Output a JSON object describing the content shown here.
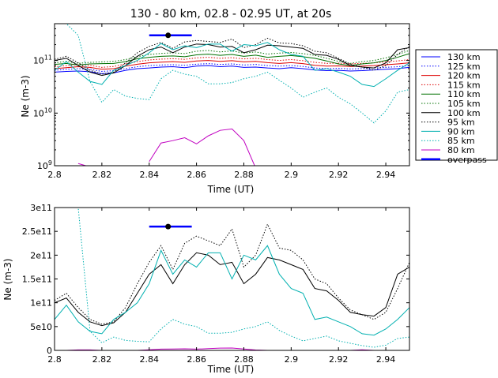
{
  "chart_data": [
    {
      "type": "line",
      "title": "130 - 80 km, 02.8 - 02.95  UT, at 20s",
      "xlabel": "Time (UT)",
      "ylabel": "Ne (m-3)",
      "xlim": [
        2.8,
        2.95
      ],
      "ylim": [
        1000000000,
        500000000000
      ],
      "yscale": "log",
      "x_ticks": [
        "2.8",
        "2.82",
        "2.84",
        "2.86",
        "2.88",
        "2.9",
        "2.92",
        "2.94"
      ],
      "y_ticks": [
        {
          "value": 1000000000,
          "base": "10",
          "exp": "9"
        },
        {
          "value": 10000000000,
          "base": "10",
          "exp": "10"
        },
        {
          "value": 100000000000,
          "base": "10",
          "exp": "11"
        }
      ],
      "legend_placement": "outside-right",
      "x": [
        2.8,
        2.805,
        2.81,
        2.815,
        2.82,
        2.825,
        2.83,
        2.835,
        2.84,
        2.845,
        2.85,
        2.855,
        2.86,
        2.865,
        2.87,
        2.875,
        2.88,
        2.885,
        2.89,
        2.895,
        2.9,
        2.905,
        2.91,
        2.915,
        2.92,
        2.925,
        2.93,
        2.935,
        2.94,
        2.945,
        2.95
      ],
      "series": [
        {
          "name": "130 km",
          "color": "#0000ff",
          "dash": "solid",
          "values": [
            60000000000.0,
            62000000000.0,
            63000000000.0,
            61000000000.0,
            56000000000.0,
            58000000000.0,
            65000000000.0,
            70000000000.0,
            72000000000.0,
            75000000000.0,
            76000000000.0,
            73000000000.0,
            78000000000.0,
            80000000000.0,
            76000000000.0,
            78000000000.0,
            74000000000.0,
            75000000000.0,
            72000000000.0,
            70000000000.0,
            73000000000.0,
            70000000000.0,
            66000000000.0,
            64000000000.0,
            65000000000.0,
            63000000000.0,
            64000000000.0,
            66000000000.0,
            68000000000.0,
            70000000000.0,
            74000000000.0
          ]
        },
        {
          "name": "125 km",
          "color": "#0000ff",
          "dash": "dotted",
          "values": [
            65000000000.0,
            68000000000.0,
            70000000000.0,
            68000000000.0,
            62000000000.0,
            64000000000.0,
            70000000000.0,
            76000000000.0,
            80000000000.0,
            82000000000.0,
            83000000000.0,
            81000000000.0,
            85000000000.0,
            87000000000.0,
            84000000000.0,
            86000000000.0,
            82000000000.0,
            84000000000.0,
            80000000000.0,
            78000000000.0,
            80000000000.0,
            77000000000.0,
            72000000000.0,
            70000000000.0,
            71000000000.0,
            69000000000.0,
            70000000000.0,
            72000000000.0,
            74000000000.0,
            76000000000.0,
            80000000000.0
          ]
        },
        {
          "name": "120 km",
          "color": "#dd0000",
          "dash": "solid",
          "values": [
            70000000000.0,
            73000000000.0,
            76000000000.0,
            74000000000.0,
            68000000000.0,
            70000000000.0,
            78000000000.0,
            85000000000.0,
            90000000000.0,
            93000000000.0,
            95000000000.0,
            92000000000.0,
            98000000000.0,
            100000000000.0,
            96000000000.0,
            99000000000.0,
            94000000000.0,
            96000000000.0,
            91000000000.0,
            88000000000.0,
            91000000000.0,
            87000000000.0,
            81000000000.0,
            78000000000.0,
            79000000000.0,
            77000000000.0,
            78000000000.0,
            80000000000.0,
            83000000000.0,
            86000000000.0,
            90000000000.0
          ]
        },
        {
          "name": "115 km",
          "color": "#dd0000",
          "dash": "dotted",
          "values": [
            76000000000.0,
            80000000000.0,
            84000000000.0,
            81000000000.0,
            74000000000.0,
            77000000000.0,
            86000000000.0,
            95000000000.0,
            102000000000.0,
            106000000000.0,
            108000000000.0,
            105000000000.0,
            112000000000.0,
            115000000000.0,
            110000000000.0,
            113000000000.0,
            107000000000.0,
            110000000000.0,
            104000000000.0,
            100000000000.0,
            104000000000.0,
            99000000000.0,
            92000000000.0,
            88000000000.0,
            89000000000.0,
            86000000000.0,
            88000000000.0,
            90000000000.0,
            94000000000.0,
            98000000000.0,
            104000000000.0
          ]
        },
        {
          "name": "110 km",
          "color": "#007000",
          "dash": "solid",
          "values": [
            84000000000.0,
            88000000000.0,
            82000000000.0,
            86000000000.0,
            87000000000.0,
            88000000000.0,
            95000000000.0,
            108000000000.0,
            115000000000.0,
            120000000000.0,
            122000000000.0,
            118000000000.0,
            128000000000.0,
            132000000000.0,
            125000000000.0,
            130000000000.0,
            120000000000.0,
            126000000000.0,
            115000000000.0,
            120000000000.0,
            124000000000.0,
            118000000000.0,
            110000000000.0,
            98000000000.0,
            86000000000.0,
            80000000000.0,
            86000000000.0,
            90000000000.0,
            100000000000.0,
            115000000000.0,
            135000000000.0
          ]
        },
        {
          "name": "105 km",
          "color": "#007000",
          "dash": "dotted",
          "values": [
            90000000000.0,
            96000000000.0,
            88000000000.0,
            92000000000.0,
            94000000000.0,
            96000000000.0,
            104000000000.0,
            118000000000.0,
            130000000000.0,
            136000000000.0,
            140000000000.0,
            135000000000.0,
            150000000000.0,
            155000000000.0,
            145000000000.0,
            152000000000.0,
            138000000000.0,
            145000000000.0,
            132000000000.0,
            138000000000.0,
            142000000000.0,
            135000000000.0,
            125000000000.0,
            110000000000.0,
            96000000000.0,
            88000000000.0,
            95000000000.0,
            100000000000.0,
            112000000000.0,
            130000000000.0,
            155000000000.0
          ]
        },
        {
          "name": "100 km",
          "color": "#000000",
          "dash": "solid",
          "values": [
            100000000000.0,
            110000000000.0,
            80000000000.0,
            60000000000.0,
            52000000000.0,
            58000000000.0,
            80000000000.0,
            120000000000.0,
            160000000000.0,
            180000000000.0,
            140000000000.0,
            180000000000.0,
            205000000000.0,
            200000000000.0,
            180000000000.0,
            185000000000.0,
            140000000000.0,
            160000000000.0,
            195000000000.0,
            190000000000.0,
            180000000000.0,
            170000000000.0,
            130000000000.0,
            125000000000.0,
            105000000000.0,
            80000000000.0,
            75000000000.0,
            72000000000.0,
            90000000000.0,
            160000000000.0,
            175000000000.0
          ]
        },
        {
          "name": "95 km",
          "color": "#000000",
          "dash": "dotted",
          "values": [
            105000000000.0,
            120000000000.0,
            90000000000.0,
            65000000000.0,
            55000000000.0,
            60000000000.0,
            90000000000.0,
            140000000000.0,
            185000000000.0,
            220000000000.0,
            170000000000.0,
            225000000000.0,
            240000000000.0,
            230000000000.0,
            220000000000.0,
            255000000000.0,
            175000000000.0,
            200000000000.0,
            265000000000.0,
            215000000000.0,
            210000000000.0,
            190000000000.0,
            150000000000.0,
            140000000000.0,
            110000000000.0,
            85000000000.0,
            75000000000.0,
            65000000000.0,
            80000000000.0,
            130000000000.0,
            185000000000.0
          ]
        },
        {
          "name": "90 km",
          "color": "#00b0b0",
          "dash": "solid",
          "values": [
            65000000000.0,
            95000000000.0,
            60000000000.0,
            40000000000.0,
            35000000000.0,
            65000000000.0,
            80000000000.0,
            100000000000.0,
            140000000000.0,
            210000000000.0,
            160000000000.0,
            190000000000.0,
            175000000000.0,
            205000000000.0,
            205000000000.0,
            150000000000.0,
            200000000000.0,
            190000000000.0,
            220000000000.0,
            160000000000.0,
            130000000000.0,
            120000000000.0,
            65000000000.0,
            70000000000.0,
            60000000000.0,
            50000000000.0,
            35000000000.0,
            32000000000.0,
            45000000000.0,
            65000000000.0,
            90000000000.0
          ]
        },
        {
          "name": "85 km",
          "color": "#00b0b0",
          "dash": "dotted",
          "values": [
            600000000000.0,
            500000000000.0,
            300000000000.0,
            40000000000.0,
            16000000000.0,
            28000000000.0,
            21000000000.0,
            19000000000.0,
            18000000000.0,
            45000000000.0,
            65000000000.0,
            55000000000.0,
            50000000000.0,
            36000000000.0,
            36000000000.0,
            38000000000.0,
            45000000000.0,
            50000000000.0,
            60000000000.0,
            42000000000.0,
            30000000000.0,
            20000000000.0,
            25000000000.0,
            30000000000.0,
            20000000000.0,
            15000000000.0,
            10000000000.0,
            6500000000.0,
            11000000000.0,
            25000000000.0,
            28000000000.0
          ]
        },
        {
          "name": "80 km",
          "color": "#c000c0",
          "dash": "solid",
          "values": [
            null,
            null,
            1100000000.0,
            950000000.0,
            null,
            null,
            null,
            null,
            1200000000.0,
            2700000000.0,
            3000000000.0,
            3400000000.0,
            2600000000.0,
            3700000000.0,
            4700000000.0,
            5000000000.0,
            3000000000.0,
            900000000.0,
            null,
            null,
            null,
            null,
            null,
            null,
            null,
            null,
            1200000000.0,
            null,
            null,
            null,
            null
          ]
        }
      ],
      "overpass": {
        "name": "overpass",
        "color": "#0000ff",
        "x_start": 2.84,
        "x_end": 2.858,
        "x_center": 2.848,
        "y": 300000000000
      }
    },
    {
      "type": "line",
      "xlabel": "Time (UT)",
      "ylabel": "Ne (m-3)",
      "xlim": [
        2.8,
        2.95
      ],
      "ylim": [
        0,
        300000000000
      ],
      "yscale": "linear",
      "x_ticks": [
        "2.8",
        "2.82",
        "2.84",
        "2.86",
        "2.88",
        "2.9",
        "2.92",
        "2.94"
      ],
      "y_ticks": [
        {
          "value": 0,
          "label": "0"
        },
        {
          "value": 50000000000,
          "label": "5e10"
        },
        {
          "value": 100000000000,
          "label": "1e11"
        },
        {
          "value": 150000000000,
          "label": "1.5e11"
        },
        {
          "value": 200000000000,
          "label": "2e11"
        },
        {
          "value": 250000000000,
          "label": "2.5e11"
        },
        {
          "value": 300000000000,
          "label": "3e11"
        }
      ],
      "series_shown": [
        "95 km",
        "100 km",
        "90 km",
        "85 km",
        "80 km"
      ],
      "overpass": {
        "x_start": 2.84,
        "x_end": 2.858,
        "x_center": 2.848,
        "y": 260000000000
      }
    }
  ]
}
